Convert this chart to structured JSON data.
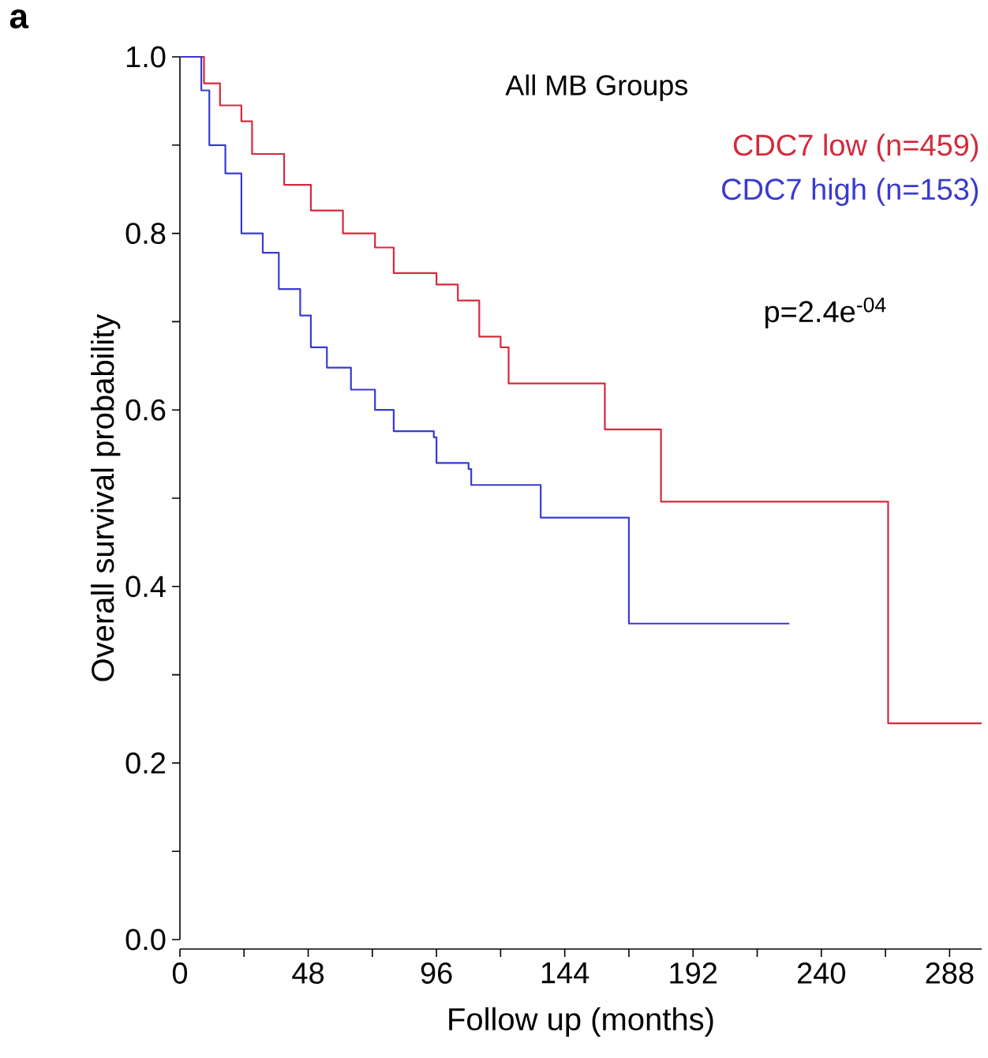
{
  "chart_data": {
    "type": "step",
    "title": "All MB Groups",
    "xlabel": "Follow up (months)",
    "ylabel": "Overall survival probability",
    "annotations": [
      "a",
      "p=2.4e$^{-04}$"
    ],
    "xlim": [
      0,
      300
    ],
    "ylim": [
      0,
      1
    ],
    "xticks": [
      0,
      {
        "value": 24,
        "label": null
      },
      48,
      {
        "value": 72,
        "label": null
      },
      96,
      {
        "value": 120,
        "label": null
      },
      144,
      {
        "value": 168,
        "label": null
      },
      192,
      {
        "value": 216,
        "label": null
      },
      240,
      {
        "value": 264,
        "label": null
      },
      288
    ],
    "yticks": [
      {
        "value": 0,
        "label": "0.0"
      },
      {
        "value": 0.1,
        "label": null
      },
      0.2,
      {
        "value": 0.3,
        "label": null
      },
      0.4,
      {
        "value": 0.5,
        "label": null
      },
      0.6,
      {
        "value": 0.7,
        "label": null
      },
      0.8,
      {
        "value": 0.9,
        "label": null
      },
      {
        "value": 1,
        "label": "1.0"
      }
    ],
    "legend": "top right",
    "series": [
      {
        "name": "CDC7 low (n=459)",
        "color": "#d42a3c",
        "x": [
          0,
          9,
          15,
          23,
          27,
          39,
          49,
          61,
          73,
          80,
          96,
          104,
          112,
          120,
          123,
          159,
          180,
          265,
          300
        ],
        "values": [
          1.0,
          0.97,
          0.945,
          0.927,
          0.89,
          0.855,
          0.826,
          0.8,
          0.784,
          0.755,
          0.742,
          0.724,
          0.683,
          0.671,
          0.63,
          0.578,
          0.496,
          0.245,
          0.245
        ]
      },
      {
        "name": "CDC7 high (n=153)",
        "color": "#3a3ad0",
        "x": [
          0,
          8,
          11,
          17,
          23,
          31,
          37,
          45,
          49,
          55,
          64,
          73,
          80,
          95,
          96,
          108,
          109,
          135,
          168,
          228
        ],
        "values": [
          1.0,
          0.962,
          0.9,
          0.868,
          0.8,
          0.778,
          0.737,
          0.707,
          0.671,
          0.648,
          0.623,
          0.6,
          0.576,
          0.569,
          0.54,
          0.533,
          0.515,
          0.478,
          0.358,
          0.358
        ]
      }
    ]
  }
}
